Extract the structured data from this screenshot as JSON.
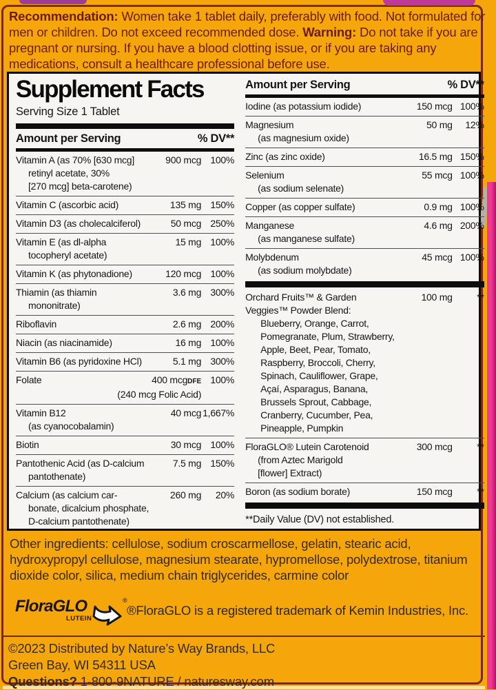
{
  "top_notice": {
    "bold_lead": "Recommendation:",
    "text_1": " Women take 1 tablet daily, preferably with food.  Not formulated for men or children. Do not exceed recommended dose. ",
    "bold_2": "Warning:",
    "text_2": " Do not take if you are pregnant or nursing. If you have a blood clotting issue, or if you are taking any medications, consult a healthcare professional before use."
  },
  "panel": {
    "title": "Supplement Facts",
    "serving_size": "Serving Size 1 Tablet",
    "column_header": {
      "amount": "Amount per Serving",
      "dv": "% DV**"
    },
    "left_rows": [
      {
        "lines": [
          "Vitamin A (as 70% [630 mcg]",
          "retinyl acetate, 30%",
          "[270 mcg] beta-carotene)"
        ],
        "amount": "900 mcg",
        "dv": "100%"
      },
      {
        "lines": [
          "Vitamin C (ascorbic acid)"
        ],
        "amount": "135 mg",
        "dv": "150%"
      },
      {
        "lines": [
          "Vitamin D3 (as cholecalciferol)"
        ],
        "amount": "50 mcg",
        "dv": "250%"
      },
      {
        "lines": [
          "Vitamin E (as dl-alpha",
          "tocopheryl acetate)"
        ],
        "amount": "15 mg",
        "dv": "100%"
      },
      {
        "lines": [
          "Vitamin K (as phytonadione)"
        ],
        "amount": "120 mcg",
        "dv": "100%"
      },
      {
        "lines": [
          "Thiamin (as thiamin",
          "mononitrate)"
        ],
        "amount": "3.6 mg",
        "dv": "300%"
      },
      {
        "lines": [
          "Riboflavin"
        ],
        "amount": "2.6 mg",
        "dv": "200%"
      },
      {
        "lines": [
          "Niacin (as niacinamide)"
        ],
        "amount": "16 mg",
        "dv": "100%"
      },
      {
        "lines": [
          "Vitamin B6 (as pyridoxine HCl)"
        ],
        "amount": "5.1 mg",
        "dv": "300%"
      },
      {
        "lines": [
          "Folate"
        ],
        "amount": "400 mcg",
        "amount_suffix": "DFE",
        "dv": "100%",
        "note": "(240 mcg Folic Acid)"
      },
      {
        "lines": [
          "Vitamin B12",
          "(as cyanocobalamin)"
        ],
        "amount": "40 mcg",
        "dv": "1,667%"
      },
      {
        "lines": [
          "Biotin"
        ],
        "amount": "30 mcg",
        "dv": "100%"
      },
      {
        "lines": [
          "Pantothenic Acid (as D-calcium",
          "pantothenate)"
        ],
        "amount": "7.5 mg",
        "dv": "150%"
      },
      {
        "lines": [
          "Calcium (as calcium car-",
          "bonate, dicalcium phosphate,",
          "D-calcium pantothenate)"
        ],
        "amount": "260 mg",
        "dv": "20%"
      }
    ],
    "right_rows": [
      {
        "lines": [
          "Iodine (as potassium iodide)"
        ],
        "amount": "150 mcg",
        "dv": "100%"
      },
      {
        "lines": [
          "Magnesium",
          "(as magnesium oxide)"
        ],
        "amount": "50 mg",
        "dv": "12%"
      },
      {
        "lines": [
          "Zinc (as zinc oxide)"
        ],
        "amount": "16.5 mg",
        "dv": "150%"
      },
      {
        "lines": [
          "Selenium",
          "(as sodium selenate)"
        ],
        "amount": "55 mcg",
        "dv": "100%"
      },
      {
        "lines": [
          "Copper (as copper sulfate)"
        ],
        "amount": "0.9 mg",
        "dv": "100%"
      },
      {
        "lines": [
          "Manganese",
          "(as manganese sulfate)"
        ],
        "amount": "4.6 mg",
        "dv": "200%"
      },
      {
        "lines": [
          "Molybdenum",
          "(as sodium molybdate)"
        ],
        "amount": "45 mcg",
        "dv": "100%",
        "bar_after": true
      },
      {
        "lines": [
          "Orchard Fruits™ & Garden",
          "Veggies™ Powder Blend:"
        ],
        "flush_lines": true,
        "list": [
          "Blueberry, Orange, Carrot,",
          "Pomegranate, Plum, Strawberry,",
          "Apple, Beet, Pear, Tomato,",
          "Raspberry, Broccoli, Cherry,",
          "Spinach, Cauliflower, Grape,",
          "Açaí, Asparagus, Banana,",
          "Brussels Sprout, Cabbage,",
          "Cranberry, Cucumber, Pea,",
          "Pineapple, Pumpkin"
        ],
        "amount": "100 mg",
        "dv": "**"
      },
      {
        "lines": [
          "FloraGLO® Lutein Carotenoid",
          "(from Aztec Marigold",
          "[flower] Extract)"
        ],
        "amount": "300 mcg",
        "dv": "**"
      },
      {
        "lines": [
          "Boron (as sodium borate)"
        ],
        "amount": "150 mcg",
        "dv": "**",
        "bar_after": true
      }
    ],
    "right_footnote": "**Daily Value (DV) not established."
  },
  "other_ingredients": "Other ingredients: cellulose, sodium croscarmellose, gelatin, stearic acid, hydroxypropyl cellulose, magnesium stearate, hypromellose, polydextrose, titanium dioxide color, silica, medium chain triglycerides, carmine color",
  "floraglo": {
    "logo_text": "FloraGLO",
    "logo_sub": "LUTEIN",
    "logo_reg": "®",
    "trademark_note": "®FloraGLO is a registered trademark of Kemin Industries, Inc."
  },
  "footer": {
    "copyright": "©2023 Distributed by Nature’s Way Brands, LLC",
    "address": "Green Bay, WI 54311 USA",
    "questions_label": "Questions?",
    "questions_value": " 1-800-9NATURE / naturesway.com"
  },
  "colors": {
    "label_orange": "#F4A60B",
    "panel_bg": "#F6F5F1",
    "notice_text": "#6D1C10",
    "bar_black": "#0D0D0D",
    "package_edge_pink": "#E8368D",
    "package_edge_purple": "#9C3C95"
  }
}
